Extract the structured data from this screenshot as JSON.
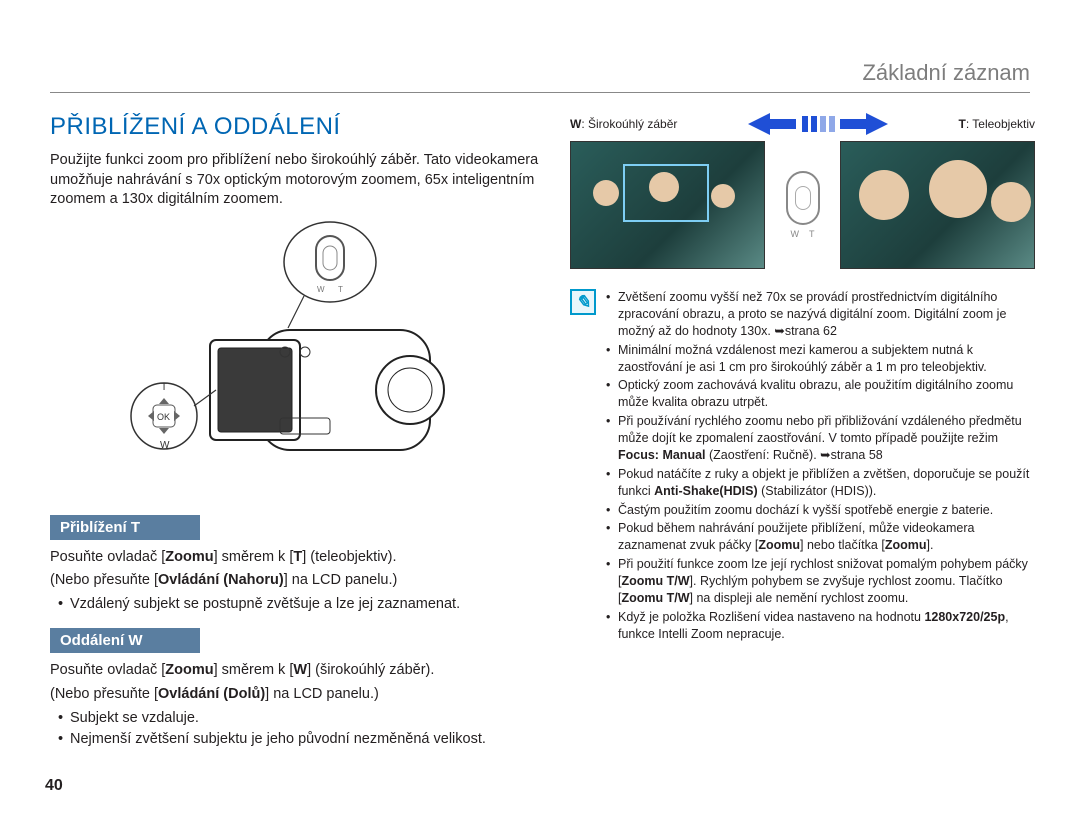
{
  "header": {
    "title": "Základní záznam"
  },
  "left": {
    "heading": "PŘIBLÍŽENÍ A ODDÁLENÍ",
    "intro": "Použijte funkci zoom pro přiblížení nebo širokoúhlý záběr. Tato videokamera umožňuje nahrávání s 70x optickým motorovým zoomem, 65x inteligentním zoomem a 130x digitálním zoomem.",
    "sec1": {
      "title": "Přiblížení T",
      "line1_pre": "Posuňte ovladač [",
      "line1_b1": "Zoomu",
      "line1_mid": "] směrem k [",
      "line1_b2": "T",
      "line1_post": "] (teleobjektiv).",
      "line2_pre": "(Nebo přesuňte [",
      "line2_b": "Ovládání (Nahoru)",
      "line2_post": "] na LCD panelu.)",
      "bullet1": "Vzdálený subjekt se postupně zvětšuje a lze jej zaznamenat."
    },
    "sec2": {
      "title": "Oddálení W",
      "line1_pre": "Posuňte ovladač [",
      "line1_b1": "Zoomu",
      "line1_mid": "] směrem k [",
      "line1_b2": "W",
      "line1_post": "] (širokoúhlý záběr).",
      "line2_pre": "(Nebo přesuňte [",
      "line2_b": "Ovládání (Dolů)",
      "line2_post": "] na LCD panelu.)",
      "bullets": [
        "Subjekt se vzdaluje.",
        "Nejmenší zvětšení subjektu je jeho původní nezměněná velikost."
      ]
    },
    "diagram": {
      "T": "T",
      "W": "W",
      "OK": "OK"
    }
  },
  "right": {
    "w_prefix": "W",
    "w_label": ": Širokoúhlý záběr",
    "t_prefix": "T",
    "t_label": ": Teleobjektiv",
    "zoomctl": {
      "W": "W",
      "T": "T"
    },
    "arrow_colors": {
      "left": "#1f4fd6",
      "right": "#1f4fd6",
      "bar_on": "#1f4fd6",
      "bar_off": "#8fa8e8"
    },
    "notes": [
      {
        "pre": "Zvětšení zoomu vyšší než 70x se provádí prostřednictvím digitálního zpracování obrazu, a proto se nazývá digitální zoom. Digitální zoom je možný až do hodnoty 130x. ",
        "ref": "➥strana 62"
      },
      {
        "pre": "Minimální možná vzdálenost mezi kamerou a subjektem nutná k zaostřování je asi 1 cm pro širokoúhlý záběr a 1 m pro teleobjektiv."
      },
      {
        "pre": "Optický zoom zachovává kvalitu obrazu, ale použitím digitálního zoomu může kvalita obrazu utrpět."
      },
      {
        "pre": "Při používání rychlého zoomu nebo při přibližování vzdáleného předmětu může dojít ke zpomalení zaostřování. V tomto případě použijte režim ",
        "b1": "Focus: Manual",
        "mid1": " (Zaostření: Ručně). ",
        "ref": "➥strana 58"
      },
      {
        "pre": "Pokud natáčíte z ruky a objekt je přiblížen a zvětšen, doporučuje se použít funkci ",
        "b1": "Anti-Shake(HDIS)",
        "mid1": " (Stabilizátor (HDIS))."
      },
      {
        "pre": "Častým použitím zoomu dochází k vyšší spotřebě energie z baterie."
      },
      {
        "pre": "Pokud během nahrávání použijete přiblížení, může videokamera zaznamenat zvuk páčky [",
        "b1": "Zoomu",
        "mid1": "] nebo tlačítka [",
        "b2": "Zoomu",
        "mid2": "]."
      },
      {
        "pre": "Při použití funkce zoom lze její rychlost snižovat pomalým pohybem páčky [",
        "b1": "Zoomu T/W",
        "mid1": "]. Rychlým pohybem se zvyšuje rychlost zoomu. Tlačítko [",
        "b2": "Zoomu T/W",
        "mid2": "] na displeji ale nemění rychlost zoomu."
      },
      {
        "pre": "Když je položka Rozlišení videa nastaveno na hodnotu ",
        "b1": "1280x720/25p",
        "mid1": ", funkce Intelli Zoom nepracuje."
      }
    ]
  },
  "colors": {
    "heading": "#0066b3",
    "subbar_bg": "#5a7ea0",
    "subbar_fg": "#ffffff",
    "header_text": "#7d7d7d",
    "note_icon_border": "#0099cc"
  },
  "page_number": "40"
}
